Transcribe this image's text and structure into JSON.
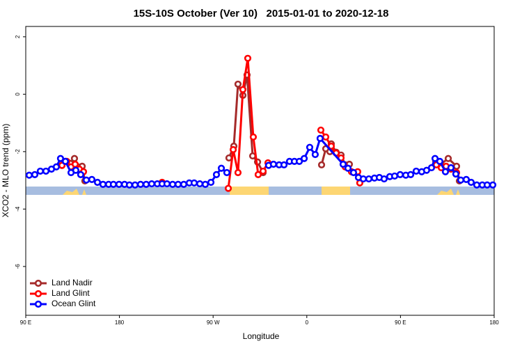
{
  "chart_data": {
    "type": "line",
    "title": "15S-10S October (Ver 10)   2015-01-01 to 2020-12-18",
    "x_label": "Longitude",
    "y_label": "XCO2 - MLO trend (ppm)",
    "xlim": [
      90,
      540
    ],
    "ylim": [
      -7.7,
      2.36
    ],
    "xticks": [
      {
        "value": 90,
        "label": "90 E"
      },
      180,
      {
        "value": 270,
        "label": "90 W"
      },
      {
        "value": 360,
        "label": "0"
      },
      {
        "value": 450,
        "label": "90 E"
      },
      {
        "value": 540,
        "label": "180"
      }
    ],
    "yticks": [
      2,
      0,
      -2,
      -4,
      -6
    ],
    "legend": "bottom-left",
    "series": [
      {
        "name": "Land Nadir",
        "color": "#a52a2a",
        "x": [
          124.8,
          128.1,
          132.8,
          136.8,
          140.1,
          144.2,
          146.8,
          null,
          285.2,
          289.9,
          293.9,
          298.6,
          302.6,
          308,
          312.7,
          318,
          null,
          374.2,
          378.2,
          382.2,
          383.5,
          388.2,
          392.9,
          396.9,
          400.9,
          null,
          483.8,
          488.5,
          495.9,
          503.9,
          506.6
        ],
        "values": [
          -2.48,
          -2.34,
          -2.41,
          -2.24,
          -2.53,
          -2.51,
          -3.02,
          null,
          -2.22,
          -1.81,
          0.35,
          -0.04,
          0.67,
          -2.15,
          -2.36,
          -2.73,
          null,
          -2.46,
          -1.9,
          -2.0,
          -1.73,
          -2.02,
          -2.12,
          -2.46,
          -2.44,
          null,
          -2.32,
          -2.44,
          -2.24,
          -2.51,
          -3.02
        ]
      },
      {
        "name": "Land Glint",
        "color": "#ff0000",
        "x": [
          124.8,
          129.4,
          133.5,
          137.5,
          141.5,
          145.5,
          null,
          221,
          null,
          284.6,
          289.3,
          293.9,
          298.6,
          303.3,
          308.6,
          313.3,
          318,
          322.7,
          null,
          373.5,
          378.2,
          383.5,
          388.2,
          392.9,
          396.9,
          402.9,
          408.9,
          410.9,
          null,
          484.5,
          489.2,
          493.8,
          498.5,
          503.9
        ],
        "values": [
          -2.48,
          -2.34,
          -2.53,
          -2.44,
          -2.61,
          -2.7,
          null,
          -3.07,
          null,
          -3.28,
          -1.93,
          -2.73,
          0.16,
          1.25,
          -1.49,
          -2.8,
          -2.68,
          -2.39,
          null,
          -1.25,
          -1.49,
          -1.81,
          -2.05,
          -2.22,
          -2.53,
          -2.7,
          -2.7,
          -3.09,
          null,
          -2.46,
          -2.56,
          -2.51,
          -2.61,
          -2.73
        ]
      },
      {
        "name": "Ocean Glint",
        "color": "#0000ff",
        "x": [
          93.3,
          98.7,
          104,
          109.4,
          114.7,
          119.4,
          123.4,
          128.1,
          133.5,
          138.1,
          142.8,
          148.2,
          153.5,
          158.9,
          164.2,
          169.6,
          174.2,
          179.6,
          184.9,
          189.6,
          195,
          200.3,
          205.7,
          211,
          216.4,
          221,
          225.7,
          231.1,
          236.4,
          241.8,
          247.1,
          251.8,
          257.2,
          262.5,
          267.9,
          273.2,
          277.9,
          283.2,
          null,
          323.3,
          328,
          333.4,
          338.1,
          343.4,
          348.1,
          352.8,
          357.5,
          362.8,
          368.1,
          372.8,
          394.9,
          399.6,
          404.9,
          409.6,
          414.3,
          419.6,
          425,
          429.7,
          434.3,
          439.7,
          444.4,
          449.7,
          455.1,
          459.8,
          465.1,
          470.4,
          475.1,
          479.8,
          483.2,
          487.8,
          493.2,
          498.5,
          503.2,
          507.9,
          513.2,
          517.9,
          523.3,
          528.6,
          533.3,
          538.7
        ],
        "values": [
          -2.82,
          -2.8,
          -2.68,
          -2.68,
          -2.61,
          -2.53,
          -2.24,
          -2.34,
          -2.73,
          -2.65,
          -2.8,
          -2.99,
          -2.97,
          -3.07,
          -3.14,
          -3.14,
          -3.14,
          -3.14,
          -3.14,
          -3.16,
          -3.16,
          -3.14,
          -3.14,
          -3.12,
          -3.12,
          -3.12,
          -3.12,
          -3.14,
          -3.14,
          -3.14,
          -3.09,
          -3.09,
          -3.12,
          -3.14,
          -3.07,
          -2.8,
          -2.58,
          -2.73,
          null,
          -2.48,
          -2.44,
          -2.46,
          -2.46,
          -2.34,
          -2.34,
          -2.34,
          -2.24,
          -1.85,
          -2.1,
          -1.54,
          -2.44,
          -2.58,
          -2.73,
          -2.9,
          -2.95,
          -2.95,
          -2.92,
          -2.9,
          -2.95,
          -2.87,
          -2.85,
          -2.8,
          -2.82,
          -2.8,
          -2.68,
          -2.7,
          -2.65,
          -2.56,
          -2.24,
          -2.34,
          -2.7,
          -2.56,
          -2.78,
          -2.99,
          -2.97,
          -3.07,
          -3.16,
          -3.16,
          -3.16,
          -3.16
        ]
      }
    ]
  }
}
